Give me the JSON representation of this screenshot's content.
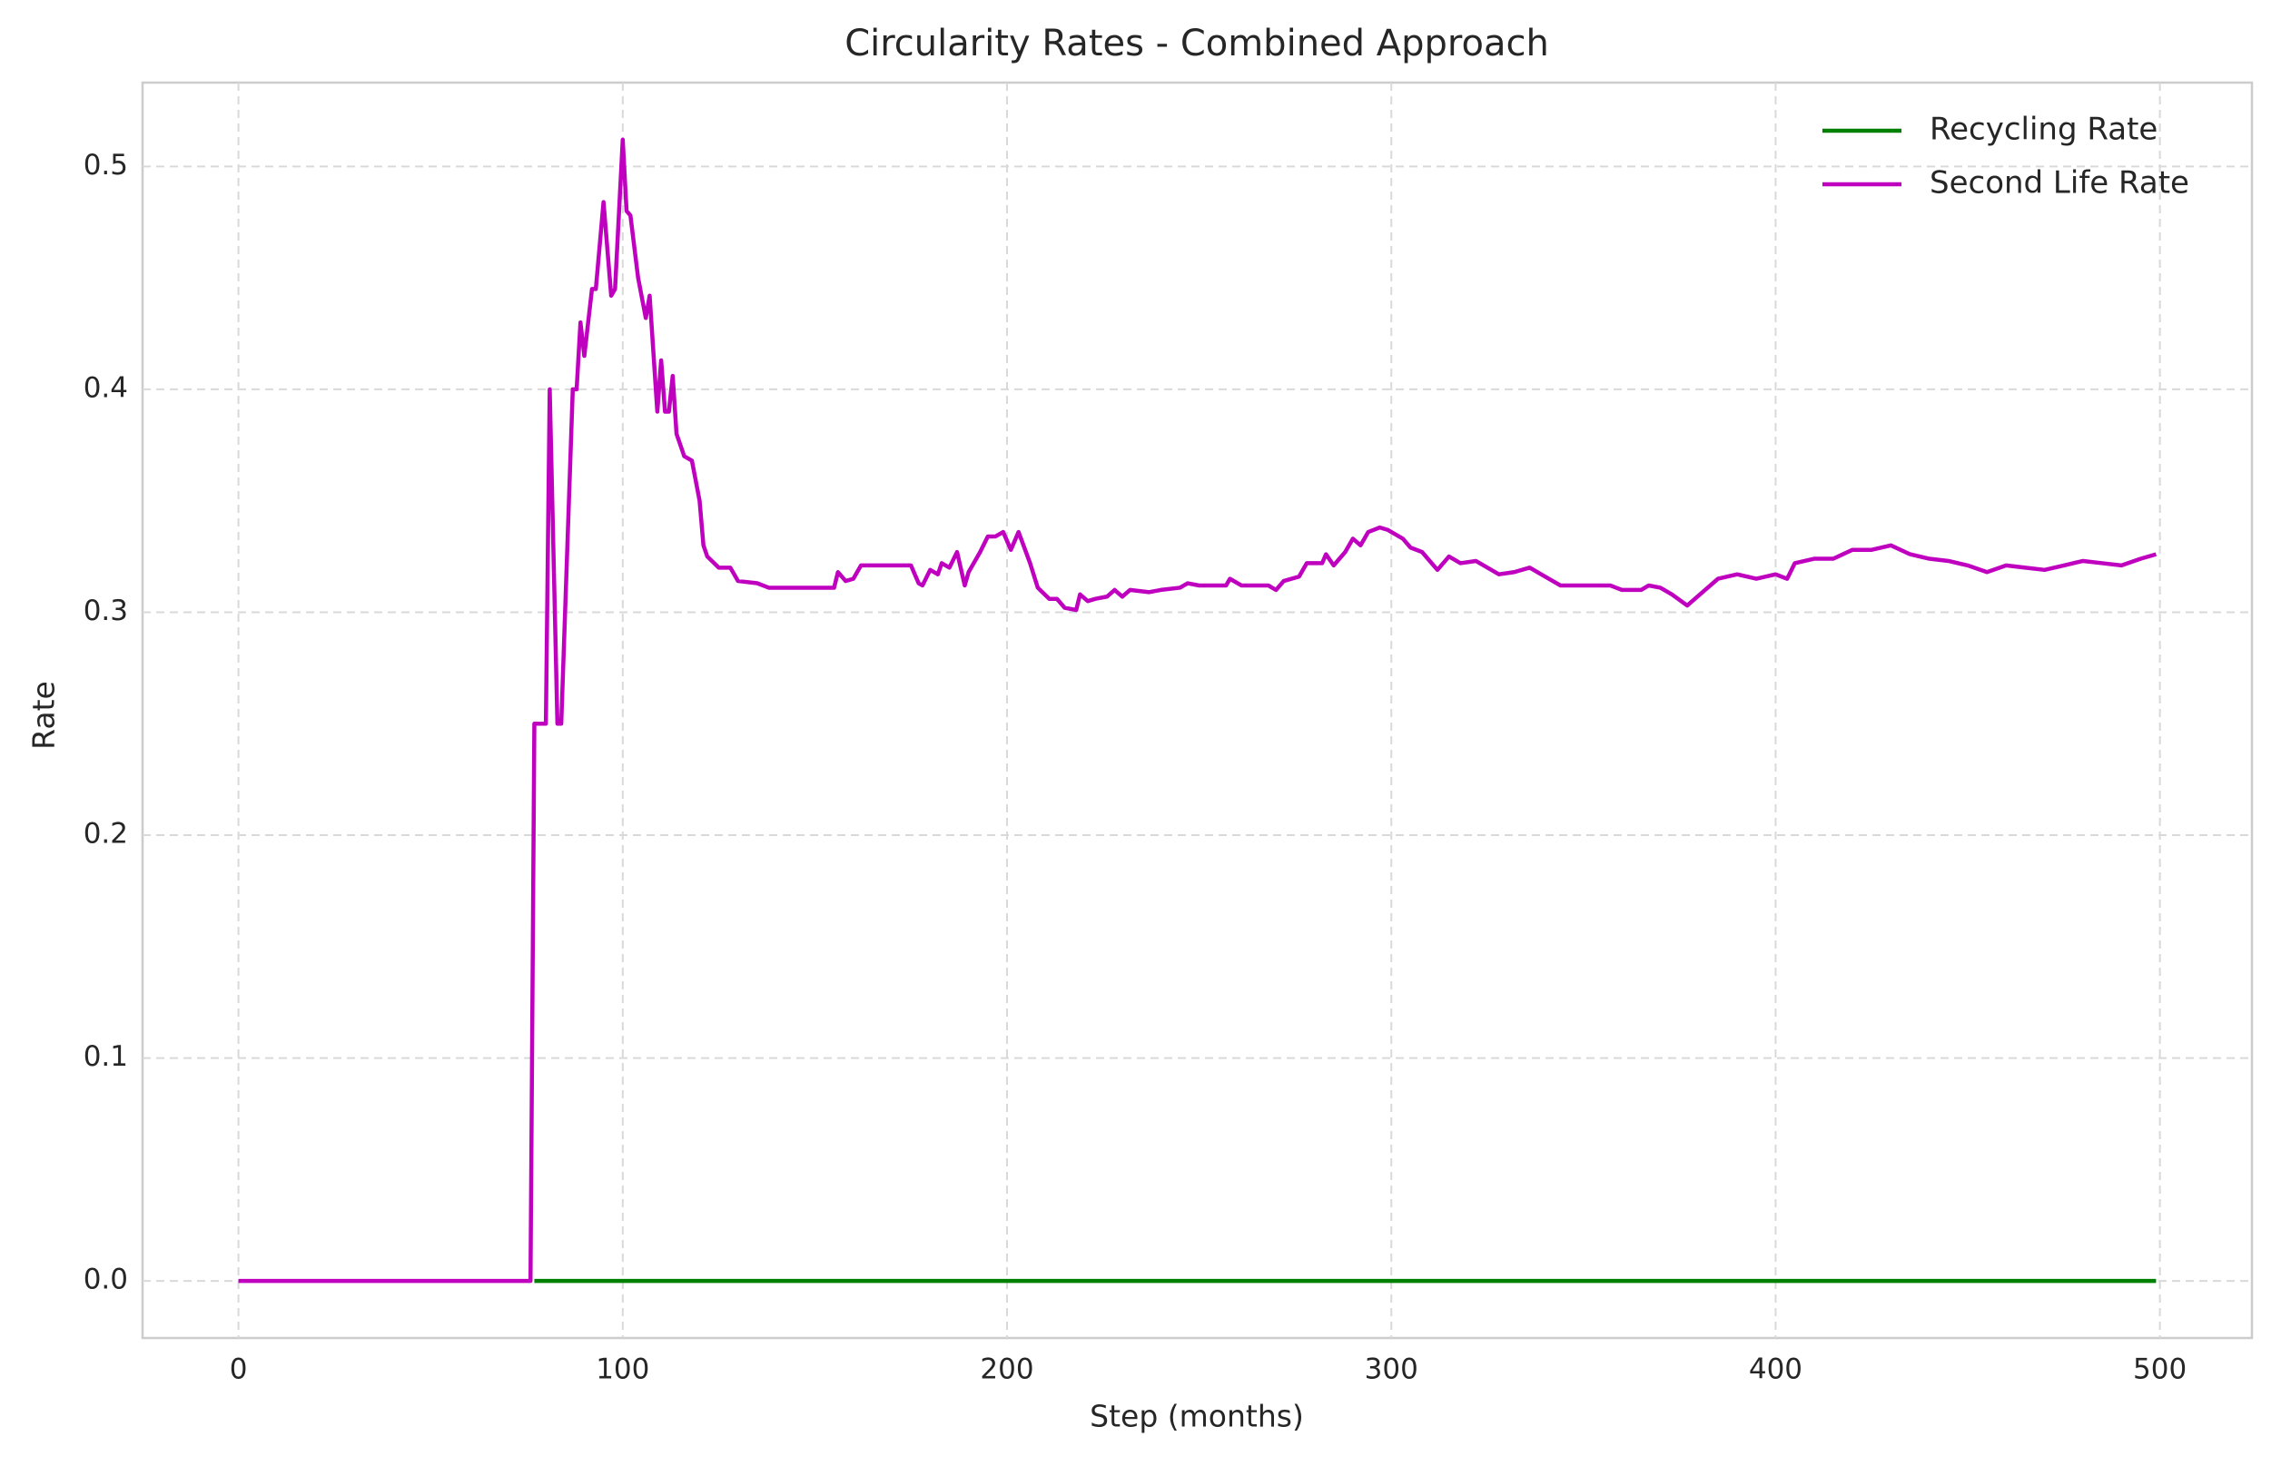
{
  "chart_data": {
    "type": "line",
    "title": "Circularity Rates - Combined Approach",
    "x_label": "Step (months)",
    "y_label": "Rate",
    "x": [
      0,
      76,
      77,
      80,
      81,
      83,
      84,
      87,
      88,
      89,
      90,
      92,
      93,
      95,
      97,
      98,
      100,
      101,
      102,
      104,
      106,
      107,
      109,
      110,
      111,
      112,
      113,
      114,
      116,
      118,
      120,
      121,
      122,
      125,
      128,
      130,
      135,
      138,
      155,
      156,
      158,
      160,
      162,
      175,
      177,
      178,
      180,
      182,
      183,
      185,
      187,
      189,
      190,
      193,
      195,
      197,
      199,
      201,
      203,
      206,
      208,
      211,
      213,
      215,
      218,
      219,
      221,
      223,
      226,
      228,
      230,
      232,
      237,
      240,
      245,
      247,
      250,
      257,
      258,
      261,
      268,
      270,
      272,
      276,
      278,
      282,
      283,
      285,
      288,
      290,
      292,
      294,
      297,
      299,
      303,
      305,
      308,
      310,
      312,
      315,
      318,
      322,
      325,
      328,
      332,
      336,
      340,
      344,
      357,
      360,
      365,
      367,
      370,
      373,
      377,
      381,
      385,
      390,
      395,
      400,
      403,
      405,
      410,
      415,
      420,
      425,
      430,
      435,
      440,
      445,
      450,
      455,
      460,
      465,
      470,
      475,
      480,
      485,
      490,
      495,
      499
    ],
    "series": [
      {
        "name": "Recycling Rate",
        "color": "#008000",
        "values": [
          null,
          null,
          0,
          0,
          0,
          0,
          0,
          0,
          0,
          0,
          0,
          0,
          0,
          0,
          0,
          0,
          0,
          0,
          0,
          0,
          0,
          0,
          0,
          0,
          0,
          0,
          0,
          0,
          0,
          0,
          0,
          0,
          0,
          0,
          0,
          0,
          0,
          0,
          0,
          0,
          0,
          0,
          0,
          0,
          0,
          0,
          0,
          0,
          0,
          0,
          0,
          0,
          0,
          0,
          0,
          0,
          0,
          0,
          0,
          0,
          0,
          0,
          0,
          0,
          0,
          0,
          0,
          0,
          0,
          0,
          0,
          0,
          0,
          0,
          0,
          0,
          0,
          0,
          0,
          0,
          0,
          0,
          0,
          0,
          0,
          0,
          0,
          0,
          0,
          0,
          0,
          0,
          0,
          0,
          0,
          0,
          0,
          0,
          0,
          0,
          0,
          0,
          0,
          0,
          0,
          0,
          0,
          0,
          0,
          0,
          0,
          0,
          0,
          0,
          0,
          0,
          0,
          0,
          0,
          0,
          0,
          0,
          0,
          0,
          0,
          0,
          0,
          0,
          0,
          0,
          0,
          0,
          0,
          0,
          0,
          0,
          0,
          0,
          0,
          0,
          0
        ]
      },
      {
        "name": "Second Life Rate",
        "color": "#bf00bf",
        "values": [
          0,
          0,
          0.25,
          0.25,
          0.4,
          0.25,
          0.25,
          0.4,
          0.4,
          0.43,
          0.415,
          0.445,
          0.445,
          0.484,
          0.442,
          0.445,
          0.512,
          0.48,
          0.478,
          0.45,
          0.432,
          0.442,
          0.39,
          0.413,
          0.39,
          0.39,
          0.406,
          0.38,
          0.37,
          0.368,
          0.35,
          0.33,
          0.325,
          0.32,
          0.32,
          0.314,
          0.313,
          0.311,
          0.311,
          0.318,
          0.314,
          0.315,
          0.321,
          0.321,
          0.313,
          0.312,
          0.319,
          0.317,
          0.322,
          0.32,
          0.327,
          0.312,
          0.318,
          0.327,
          0.334,
          0.334,
          0.336,
          0.328,
          0.336,
          0.322,
          0.311,
          0.306,
          0.306,
          0.302,
          0.301,
          0.308,
          0.305,
          0.306,
          0.307,
          0.31,
          0.307,
          0.31,
          0.309,
          0.31,
          0.311,
          0.313,
          0.312,
          0.312,
          0.315,
          0.312,
          0.312,
          0.31,
          0.314,
          0.316,
          0.322,
          0.322,
          0.326,
          0.321,
          0.327,
          0.333,
          0.33,
          0.336,
          0.338,
          0.337,
          0.333,
          0.329,
          0.327,
          0.323,
          0.319,
          0.325,
          0.322,
          0.323,
          0.32,
          0.317,
          0.318,
          0.32,
          0.316,
          0.312,
          0.312,
          0.31,
          0.31,
          0.312,
          0.311,
          0.308,
          0.303,
          0.309,
          0.315,
          0.317,
          0.315,
          0.317,
          0.315,
          0.322,
          0.324,
          0.324,
          0.328,
          0.328,
          0.33,
          0.326,
          0.324,
          0.323,
          0.321,
          0.318,
          0.321,
          0.32,
          0.319,
          0.321,
          0.323,
          0.322,
          0.321,
          0.324,
          0.326
        ]
      }
    ],
    "xlim": [
      -24.95,
      523.95
    ],
    "ylim": [
      -0.0256,
      0.5376
    ],
    "xticks": [
      0,
      100,
      200,
      300,
      400,
      500
    ],
    "yticks": [
      {
        "value": 0,
        "label": "0.0"
      },
      0.1,
      0.2,
      0.3,
      0.4,
      0.5
    ],
    "grid": true,
    "legend": "upper-right"
  }
}
